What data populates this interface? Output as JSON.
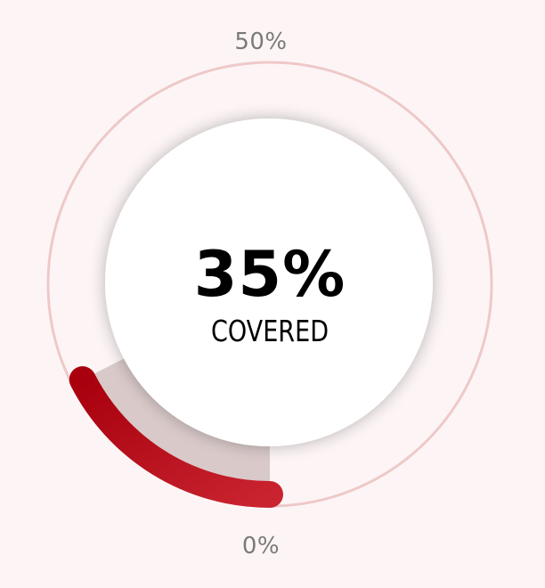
{
  "gauge": {
    "scale_max_label": "50%",
    "scale_min_label": "0%",
    "value_label": "35%",
    "caption": "COVERED",
    "progress_fraction": 0.35,
    "colors": {
      "background": "#fdf5f5",
      "track_ring": "#eec9c9",
      "filled_wedge": "#d9c9c9",
      "arc_start": "#a8000d",
      "arc_end": "#c8232f",
      "center_disc": "#ffffff"
    }
  }
}
